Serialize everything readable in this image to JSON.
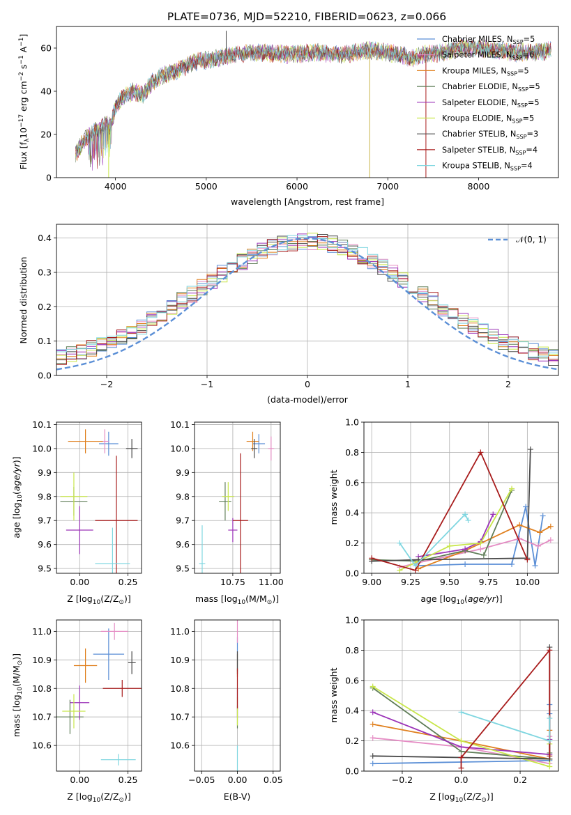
{
  "figure": {
    "title": "PLATE=0736, MJD=52210, FIBERID=0623, z=0.066"
  },
  "colors": {
    "chabrier_miles": "#5b8fd6",
    "salpeter_miles": "#e58cc4",
    "kroupa_miles": "#e0801f",
    "chabrier_elodie": "#5f7d57",
    "salpeter_elodie": "#9b33b8",
    "kroupa_elodie": "#c8e64a",
    "chabrier_stelib": "#4a4a4a",
    "salpeter_stelib": "#a81c1c",
    "kroupa_stelib": "#7fd6e0",
    "gauss": "#5b8fd6"
  },
  "chart_data": [
    {
      "id": "spectrum",
      "type": "line",
      "xlabel": "wavelength [Angstrom, rest frame]",
      "ylabel_main": "Flux [f",
      "ylabel_sub1": "λ",
      "ylabel_mid": "10",
      "ylabel_sup1": "−17",
      "ylabel_mid2": " erg cm",
      "ylabel_sup2": "−2",
      "ylabel_mid3": " s",
      "ylabel_sup3": "−1",
      "ylabel_mid4": " A",
      "ylabel_sup4": "−1",
      "ylabel_end": "]",
      "xlim": [
        3350,
        8880
      ],
      "ylim": [
        0,
        70
      ],
      "xticks": [
        4000,
        5000,
        6000,
        7000,
        8000
      ],
      "yticks": [
        0,
        20,
        40,
        60
      ],
      "legend_position": "upper-right",
      "legend": [
        {
          "label": "Chabrier MILES, N",
          "sub": "SSP",
          "tail": "=5",
          "color": "#5b8fd6"
        },
        {
          "label": "Salpeter MILES, N",
          "sub": "SSP",
          "tail": "=6",
          "color": "#e58cc4"
        },
        {
          "label": "Kroupa MILES, N",
          "sub": "SSP",
          "tail": "=5",
          "color": "#e0801f"
        },
        {
          "label": "Chabrier ELODIE, N",
          "sub": "SSP",
          "tail": "=5",
          "color": "#5f7d57"
        },
        {
          "label": "Salpeter ELODIE, N",
          "sub": "SSP",
          "tail": "=5",
          "color": "#9b33b8"
        },
        {
          "label": "Kroupa ELODIE, N",
          "sub": "SSP",
          "tail": "=5",
          "color": "#c8e64a"
        },
        {
          "label": "Chabrier STELIB, N",
          "sub": "SSP",
          "tail": "=3",
          "color": "#4a4a4a"
        },
        {
          "label": "Salpeter STELIB, N",
          "sub": "SSP",
          "tail": "=4",
          "color": "#a81c1c"
        },
        {
          "label": "Kroupa STELIB, N",
          "sub": "SSP",
          "tail": "=4",
          "color": "#7fd6e0"
        }
      ],
      "continuum": [
        [
          3560,
          11
        ],
        [
          3700,
          20
        ],
        [
          3800,
          22
        ],
        [
          3900,
          25
        ],
        [
          3950,
          24
        ],
        [
          4000,
          33
        ],
        [
          4100,
          38
        ],
        [
          4200,
          40
        ],
        [
          4300,
          38
        ],
        [
          4400,
          44
        ],
        [
          4500,
          47
        ],
        [
          4700,
          50
        ],
        [
          4900,
          54
        ],
        [
          5100,
          55
        ],
        [
          5300,
          57
        ],
        [
          5600,
          58
        ],
        [
          5900,
          57
        ],
        [
          6200,
          58
        ],
        [
          6500,
          57
        ],
        [
          6800,
          59
        ],
        [
          7000,
          58
        ],
        [
          7150,
          57
        ],
        [
          7250,
          55
        ],
        [
          7400,
          57
        ],
        [
          7600,
          58
        ],
        [
          7800,
          60
        ],
        [
          8000,
          60
        ],
        [
          8200,
          59
        ],
        [
          8400,
          58
        ],
        [
          8600,
          58
        ],
        [
          8800,
          59
        ]
      ],
      "spikes": [
        {
          "x": 3925,
          "y": 0,
          "color": "#c8e64a"
        },
        {
          "x": 5220,
          "y": 68,
          "color": "#4a4a4a"
        },
        {
          "x": 6800,
          "y": 0,
          "color": "#c8b54a"
        },
        {
          "x": 7420,
          "y": 0,
          "color": "#a81c1c"
        }
      ]
    },
    {
      "id": "residual_hist",
      "type": "histogram",
      "xlabel": "(data-model)/error",
      "ylabel": "Normed distribution",
      "xlim": [
        -2.5,
        2.5
      ],
      "ylim": [
        0,
        0.44
      ],
      "xticks": [
        -2,
        -1,
        0,
        1,
        2
      ],
      "yticks": [
        0.0,
        0.1,
        0.2,
        0.3,
        0.4
      ],
      "legend_position": "upper-right",
      "legend": [
        {
          "label": "𝒩(0, 1)",
          "style": "dashed",
          "color": "#5b8fd6"
        }
      ],
      "bin_width": 0.1,
      "series": [
        {
          "name": "Chabrier MILES, N_SSP=5",
          "color": "#5b8fd6",
          "seed": 1
        },
        {
          "name": "Salpeter MILES, N_SSP=6",
          "color": "#e58cc4",
          "seed": 2
        },
        {
          "name": "Kroupa MILES, N_SSP=5",
          "color": "#e0801f",
          "seed": 3
        },
        {
          "name": "Chabrier ELODIE, N_SSP=5",
          "color": "#5f7d57",
          "seed": 4
        },
        {
          "name": "Salpeter ELODIE, N_SSP=5",
          "color": "#9b33b8",
          "seed": 5
        },
        {
          "name": "Kroupa ELODIE, N_SSP=5",
          "color": "#c8e64a",
          "seed": 6
        },
        {
          "name": "Chabrier STELIB, N_SSP=3",
          "color": "#4a4a4a",
          "seed": 7
        },
        {
          "name": "Salpeter STELIB, N_SSP=4",
          "color": "#a81c1c",
          "seed": 8
        },
        {
          "name": "Kroupa STELIB, N_SSP=4",
          "color": "#7fd6e0",
          "seed": 9
        }
      ]
    },
    {
      "id": "age_vs_Z",
      "type": "errorbar",
      "xlabel": "Z [log",
      "xlabel_sub": "10",
      "xlabel_tail": "(Z/Z",
      "xlabel_sub2": "⊙",
      "xlabel_end": ")]",
      "ylabel": "age  [log",
      "ylabel_sub": "10",
      "ylabel_tail": "(age/yr)]",
      "xlim": [
        -0.12,
        0.32
      ],
      "ylim": [
        9.48,
        10.11
      ],
      "xticks": [
        0.0,
        0.25
      ],
      "yticks": [
        9.5,
        9.6,
        9.7,
        9.8,
        9.9,
        10.0,
        10.1
      ],
      "points": [
        {
          "x": 0.15,
          "y": 10.02,
          "xerr": 0.05,
          "yerr": 0.05,
          "color": "#5b8fd6"
        },
        {
          "x": 0.13,
          "y": 10.03,
          "xerr": 0.02,
          "yerr": 0.05,
          "color": "#e58cc4"
        },
        {
          "x": 0.03,
          "y": 10.03,
          "xerr": 0.09,
          "yerr": 0.05,
          "color": "#e0801f"
        },
        {
          "x": -0.03,
          "y": 9.78,
          "xerr": 0.07,
          "yerr": 0.06,
          "color": "#5f7d57"
        },
        {
          "x": 0.0,
          "y": 9.66,
          "xerr": 0.07,
          "yerr": 0.1,
          "color": "#9b33b8"
        },
        {
          "x": -0.03,
          "y": 9.8,
          "xerr": 0.07,
          "yerr": 0.1,
          "color": "#c8e64a"
        },
        {
          "x": 0.27,
          "y": 10.0,
          "xerr": 0.03,
          "yerr": 0.04,
          "color": "#4a4a4a"
        },
        {
          "x": 0.19,
          "y": 9.7,
          "xerr": 0.11,
          "yerr": 0.27,
          "color": "#a81c1c"
        },
        {
          "x": 0.17,
          "y": 9.52,
          "xerr": 0.09,
          "yerr": 0.15,
          "color": "#7fd6e0"
        }
      ]
    },
    {
      "id": "age_vs_mass",
      "type": "errorbar",
      "xlabel": "mass [log",
      "xlabel_sub": "10",
      "xlabel_tail": "(M/M",
      "xlabel_sub2": "⊙",
      "xlabel_end": ")]",
      "xlim": [
        10.5,
        11.06
      ],
      "ylim": [
        9.48,
        10.11
      ],
      "xticks": [
        10.75,
        11.0
      ],
      "yticks": [
        9.5,
        9.6,
        9.7,
        9.8,
        9.9,
        10.0,
        10.1
      ],
      "points": [
        {
          "x": 10.92,
          "y": 10.02,
          "xerr": 0.04,
          "yerr": 0.04,
          "color": "#5b8fd6"
        },
        {
          "x": 11.0,
          "y": 10.0,
          "xerr": 0.02,
          "yerr": 0.05,
          "color": "#e58cc4"
        },
        {
          "x": 10.88,
          "y": 10.03,
          "xerr": 0.04,
          "yerr": 0.04,
          "color": "#e0801f"
        },
        {
          "x": 10.7,
          "y": 9.78,
          "xerr": 0.04,
          "yerr": 0.08,
          "color": "#5f7d57"
        },
        {
          "x": 10.75,
          "y": 9.66,
          "xerr": 0.03,
          "yerr": 0.05,
          "color": "#9b33b8"
        },
        {
          "x": 10.72,
          "y": 9.8,
          "xerr": 0.04,
          "yerr": 0.06,
          "color": "#c8e64a"
        },
        {
          "x": 10.89,
          "y": 10.0,
          "xerr": 0.02,
          "yerr": 0.04,
          "color": "#4a4a4a"
        },
        {
          "x": 10.8,
          "y": 9.7,
          "xerr": 0.05,
          "yerr": 0.28,
          "color": "#a81c1c"
        },
        {
          "x": 10.55,
          "y": 9.52,
          "xerr": 0.02,
          "yerr": 0.16,
          "color": "#7fd6e0"
        }
      ]
    },
    {
      "id": "weight_vs_age",
      "type": "line",
      "xlabel": "age  [log",
      "xlabel_sub": "10",
      "xlabel_tail": "(age/yr)]",
      "ylabel": "mass weight",
      "xlim": [
        8.95,
        10.2
      ],
      "ylim": [
        0,
        1
      ],
      "xticks": [
        9.0,
        9.25,
        9.5,
        9.75,
        10.0
      ],
      "yticks": [
        0.0,
        0.2,
        0.4,
        0.6,
        0.8,
        1.0
      ],
      "series": [
        {
          "color": "#5b8fd6",
          "x": [
            9.3,
            9.6,
            9.9,
            9.99,
            10.05,
            10.1
          ],
          "y": [
            0.05,
            0.06,
            0.06,
            0.44,
            0.05,
            0.38
          ]
        },
        {
          "color": "#e58cc4",
          "x": [
            9.18,
            9.3,
            9.7,
            9.95,
            10.07,
            10.15
          ],
          "y": [
            0.04,
            0.07,
            0.16,
            0.23,
            0.18,
            0.22
          ]
        },
        {
          "color": "#e0801f",
          "x": [
            9.3,
            9.6,
            9.95,
            10.08,
            10.15
          ],
          "y": [
            0.03,
            0.15,
            0.32,
            0.27,
            0.31
          ]
        },
        {
          "color": "#5f7d57",
          "x": [
            9.0,
            9.3,
            9.6,
            9.72,
            9.9
          ],
          "y": [
            0.09,
            0.08,
            0.15,
            0.12,
            0.55
          ]
        },
        {
          "color": "#9b33b8",
          "x": [
            9.3,
            9.6,
            9.7,
            9.78
          ],
          "y": [
            0.11,
            0.16,
            0.21,
            0.39
          ]
        },
        {
          "color": "#c8e64a",
          "x": [
            9.18,
            9.3,
            9.5,
            9.7,
            9.9
          ],
          "y": [
            0.02,
            0.08,
            0.18,
            0.2,
            0.56
          ]
        },
        {
          "color": "#4a4a4a",
          "x": [
            9.0,
            9.3,
            10.0,
            10.02
          ],
          "y": [
            0.08,
            0.09,
            0.1,
            0.82
          ]
        },
        {
          "color": "#a81c1c",
          "x": [
            9.0,
            9.28,
            9.7,
            10.0
          ],
          "y": [
            0.1,
            0.02,
            0.8,
            0.09
          ]
        },
        {
          "color": "#7fd6e0",
          "x": [
            9.18,
            9.28,
            9.6,
            9.62
          ],
          "y": [
            0.2,
            0.05,
            0.39,
            0.35
          ]
        }
      ]
    },
    {
      "id": "mass_vs_Z",
      "type": "errorbar",
      "xlabel": "Z [log",
      "xlabel_sub": "10",
      "xlabel_tail": "(Z/Z",
      "xlabel_sub2": "⊙",
      "xlabel_end": ")]",
      "ylabel": "mass [log",
      "ylabel_sub": "10",
      "ylabel_tail": "(M/M",
      "ylabel_sub2": "⊙",
      "ylabel_end": ")]",
      "xlim": [
        -0.12,
        0.32
      ],
      "ylim": [
        10.51,
        11.04
      ],
      "xticks": [
        0.0,
        0.25
      ],
      "yticks": [
        10.6,
        10.7,
        10.8,
        10.9,
        11.0
      ],
      "points": [
        {
          "x": 0.15,
          "y": 10.92,
          "xerr": 0.08,
          "yerr": 0.09,
          "color": "#5b8fd6"
        },
        {
          "x": 0.18,
          "y": 11.0,
          "xerr": 0.07,
          "yerr": 0.03,
          "color": "#e58cc4"
        },
        {
          "x": 0.03,
          "y": 10.88,
          "xerr": 0.06,
          "yerr": 0.06,
          "color": "#e0801f"
        },
        {
          "x": -0.05,
          "y": 10.7,
          "xerr": 0.07,
          "yerr": 0.06,
          "color": "#5f7d57"
        },
        {
          "x": 0.0,
          "y": 10.75,
          "xerr": 0.05,
          "yerr": 0.06,
          "color": "#9b33b8"
        },
        {
          "x": -0.03,
          "y": 10.72,
          "xerr": 0.06,
          "yerr": 0.06,
          "color": "#c8e64a"
        },
        {
          "x": 0.27,
          "y": 10.89,
          "xerr": 0.02,
          "yerr": 0.04,
          "color": "#4a4a4a"
        },
        {
          "x": 0.22,
          "y": 10.8,
          "xerr": 0.1,
          "yerr": 0.03,
          "color": "#a81c1c"
        },
        {
          "x": 0.2,
          "y": 10.55,
          "xerr": 0.09,
          "yerr": 0.02,
          "color": "#7fd6e0"
        }
      ]
    },
    {
      "id": "mass_vs_ebv",
      "type": "errorbar",
      "xlabel": "E(B-V)",
      "xlim": [
        -0.06,
        0.06
      ],
      "ylim": [
        10.51,
        11.04
      ],
      "xticks": [
        -0.05,
        0.0,
        0.05
      ],
      "yticks": [
        10.6,
        10.7,
        10.8,
        10.9,
        11.0
      ],
      "points": [
        {
          "x": 0.0,
          "y": 10.92,
          "xerr": 0.0,
          "yerr": 0.06,
          "color": "#5b8fd6"
        },
        {
          "x": 0.0,
          "y": 11.0,
          "xerr": 0.0,
          "yerr": 0.04,
          "color": "#e58cc4"
        },
        {
          "x": 0.0,
          "y": 10.88,
          "xerr": 0.0,
          "yerr": 0.04,
          "color": "#e0801f"
        },
        {
          "x": 0.0,
          "y": 10.7,
          "xerr": 0.0,
          "yerr": 0.04,
          "color": "#5f7d57"
        },
        {
          "x": 0.0,
          "y": 10.75,
          "xerr": 0.0,
          "yerr": 0.05,
          "color": "#9b33b8"
        },
        {
          "x": 0.0,
          "y": 10.72,
          "xerr": 0.0,
          "yerr": 0.05,
          "color": "#c8e64a"
        },
        {
          "x": 0.0,
          "y": 10.89,
          "xerr": 0.0,
          "yerr": 0.04,
          "color": "#4a4a4a"
        },
        {
          "x": 0.0,
          "y": 10.8,
          "xerr": 0.0,
          "yerr": 0.07,
          "color": "#a81c1c"
        },
        {
          "x": 0.0,
          "y": 10.55,
          "xerr": 0.0,
          "yerr": 0.05,
          "color": "#7fd6e0"
        }
      ]
    },
    {
      "id": "weight_vs_Z",
      "type": "line",
      "xlabel": "Z [log",
      "xlabel_sub": "10",
      "xlabel_tail": "(Z/Z",
      "xlabel_sub2": "⊙",
      "xlabel_end": ")]",
      "ylabel": "mass weight",
      "xlim": [
        -0.33,
        0.33
      ],
      "ylim": [
        0,
        1
      ],
      "xticks": [
        -0.2,
        0.0,
        0.2
      ],
      "yticks": [
        0.0,
        0.2,
        0.4,
        0.6,
        0.8,
        1.0
      ],
      "series": [
        {
          "color": "#5b8fd6",
          "x": [
            -0.3,
            0.0,
            0.3,
            0.3,
            0.3
          ],
          "y": [
            0.05,
            0.06,
            0.07,
            0.38,
            0.44
          ]
        },
        {
          "color": "#e58cc4",
          "x": [
            -0.3,
            0.0,
            0.3,
            0.3
          ],
          "y": [
            0.22,
            0.16,
            0.05,
            0.23
          ]
        },
        {
          "color": "#e0801f",
          "x": [
            -0.3,
            0.0,
            0.3,
            0.3
          ],
          "y": [
            0.31,
            0.2,
            0.08,
            0.27
          ]
        },
        {
          "color": "#5f7d57",
          "x": [
            -0.3,
            0.0,
            0.3,
            0.3
          ],
          "y": [
            0.55,
            0.13,
            0.08,
            0.12
          ]
        },
        {
          "color": "#9b33b8",
          "x": [
            -0.3,
            0.0,
            0.3,
            0.3
          ],
          "y": [
            0.39,
            0.16,
            0.11,
            0.21
          ]
        },
        {
          "color": "#c8e64a",
          "x": [
            -0.3,
            0.0,
            0.3,
            0.3
          ],
          "y": [
            0.56,
            0.2,
            0.03,
            0.18
          ]
        },
        {
          "color": "#4a4a4a",
          "x": [
            -0.3,
            0.0,
            0.3,
            0.3
          ],
          "y": [
            0.1,
            0.09,
            0.08,
            0.82
          ]
        },
        {
          "color": "#a81c1c",
          "x": [
            0.0,
            0.0,
            0.3,
            0.3
          ],
          "y": [
            0.02,
            0.09,
            0.8,
            0.1
          ]
        },
        {
          "color": "#7fd6e0",
          "x": [
            0.0,
            0.3,
            0.3
          ],
          "y": [
            0.39,
            0.2,
            0.35
          ]
        }
      ]
    }
  ]
}
